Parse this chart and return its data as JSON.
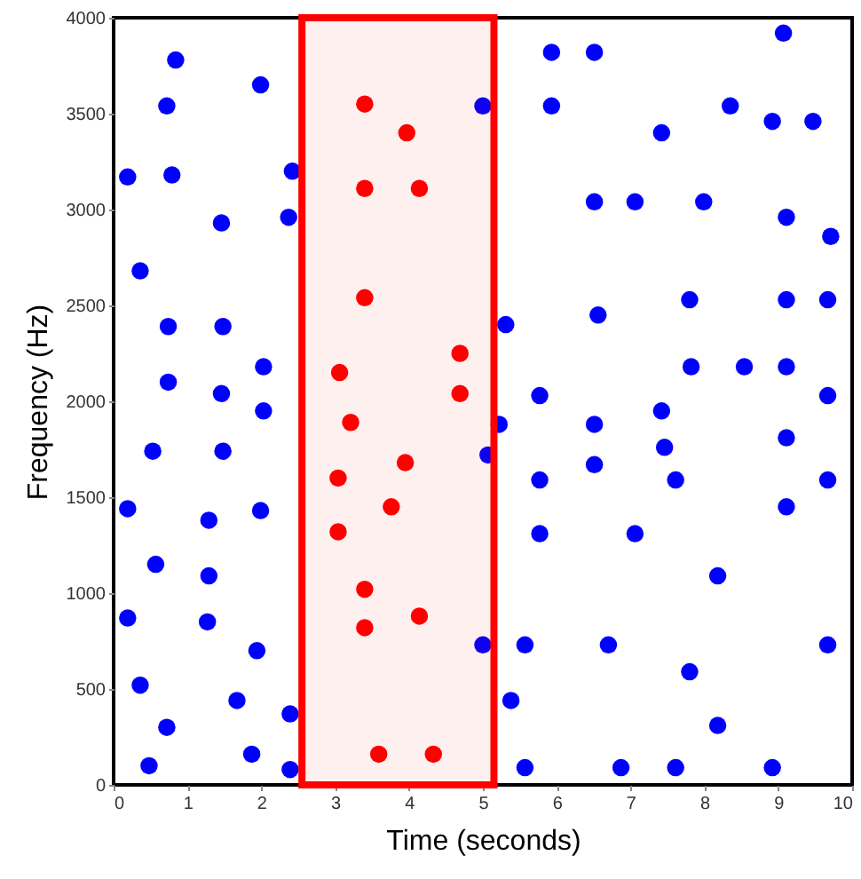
{
  "chart_data": {
    "type": "scatter",
    "xlabel": "Time (seconds)",
    "ylabel": "Frequency (Hz)",
    "xlim": [
      0,
      10
    ],
    "xticks": [
      0,
      1,
      2,
      3,
      4,
      5,
      6,
      7,
      8,
      9,
      10
    ],
    "ylim": [
      0,
      4000
    ],
    "yticks": [
      0,
      500,
      1000,
      1500,
      2000,
      2500,
      3000,
      3500,
      4000
    ],
    "grid": false,
    "marker": "circle",
    "bands": [
      {
        "axis": "x",
        "from": 2.55,
        "to": 5.15,
        "color": "#ff0000"
      }
    ],
    "series": [
      {
        "color": "#0000ff",
        "x": [
          0.84,
          0.72,
          0.79,
          0.19,
          1.99,
          1.46,
          0.36,
          0.74,
          1.48,
          0.74,
          1.46,
          2.03,
          2.03,
          0.53,
          1.48,
          0.19,
          1.29,
          1.99,
          0.57,
          1.29,
          0.19,
          1.27,
          1.94,
          0.36,
          1.67,
          0.72,
          0.48,
          1.87,
          2.39,
          2.39,
          2.42,
          2.37,
          5.93,
          6.51,
          9.07,
          5.0,
          5.93,
          8.35,
          8.92,
          9.47,
          7.42,
          6.51,
          7.06,
          7.99,
          9.11,
          9.71,
          5.31,
          6.56,
          7.8,
          9.11,
          9.67,
          7.82,
          8.54,
          9.11,
          5.77,
          9.67,
          7.42,
          5.22,
          6.51,
          9.11,
          5.07,
          7.46,
          6.51,
          5.77,
          7.61,
          9.67,
          9.11,
          5.77,
          7.06,
          8.18,
          5.0,
          5.57,
          6.7,
          9.67,
          7.8,
          5.38,
          8.18,
          5.57,
          6.87,
          7.61,
          8.92
        ],
        "values": [
          3780,
          3540,
          3180,
          3170,
          3650,
          2930,
          2680,
          2390,
          2390,
          2100,
          2040,
          2180,
          1950,
          1740,
          1740,
          1440,
          1380,
          1430,
          1150,
          1090,
          870,
          850,
          700,
          520,
          440,
          300,
          100,
          160,
          370,
          80,
          3200,
          2960,
          3820,
          3820,
          3920,
          3540,
          3540,
          3540,
          3460,
          3460,
          3400,
          3040,
          3040,
          3040,
          2960,
          2860,
          2400,
          2450,
          2530,
          2530,
          2530,
          2180,
          2180,
          2180,
          2030,
          2030,
          1950,
          1880,
          1880,
          1810,
          1720,
          1760,
          1670,
          1590,
          1590,
          1590,
          1450,
          1310,
          1310,
          1090,
          730,
          730,
          730,
          730,
          590,
          440,
          310,
          90,
          90,
          90,
          90
        ]
      },
      {
        "color": "#ff0000",
        "x": [
          3.4,
          3.97,
          3.4,
          4.14,
          3.4,
          4.69,
          3.06,
          4.69,
          3.21,
          3.95,
          3.04,
          3.76,
          3.04,
          3.4,
          4.14,
          3.4,
          3.59,
          4.33
        ],
        "values": [
          3550,
          3400,
          3110,
          3110,
          2540,
          2250,
          2150,
          2040,
          1890,
          1680,
          1600,
          1450,
          1320,
          1020,
          880,
          820,
          160,
          160
        ]
      }
    ]
  }
}
